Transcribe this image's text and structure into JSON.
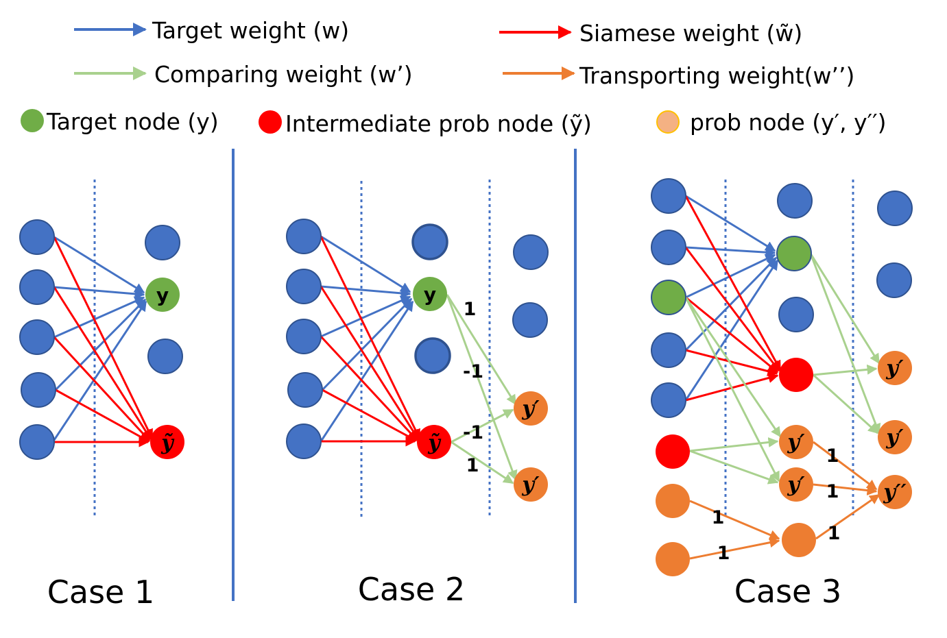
{
  "colors": {
    "blue": "#4472c4",
    "red": "#ff0000",
    "green_edge": "#a9d18e",
    "orange": "#ed7d31",
    "green_node": "#70ad47",
    "prob_fill": "#f4b183",
    "prob_stroke": "#ffc000",
    "node_blue": "#4472c4",
    "node_stroke": "#2f528f"
  },
  "legend": {
    "target_weight": "Target weight (w)",
    "siamese_weight": "Siamese weight (w̃)",
    "comparing_weight": "Comparing weight (w’)",
    "transporting_weight": "Transporting weight(w’’)",
    "target_node": "Target node (y)",
    "intermediate_node": "Intermediate prob node (ỹ)",
    "prob_node": "prob node (y′, y′′)"
  },
  "cases": {
    "case1": "Case 1",
    "case2": "Case 2",
    "case3": "Case 3"
  },
  "node_labels": {
    "y": "y",
    "y_tilde": "ỹ",
    "y_prime": "y′",
    "y_double_prime": "y′′"
  },
  "edge_labels": {
    "case2_a": "1",
    "case2_b": "-1",
    "case2_c": "-1",
    "case2_d": "1",
    "case3_a": "1",
    "case3_b": "1",
    "case3_c": "1",
    "case3_d": "1",
    "case3_e": "1",
    "case3_f": "1"
  }
}
